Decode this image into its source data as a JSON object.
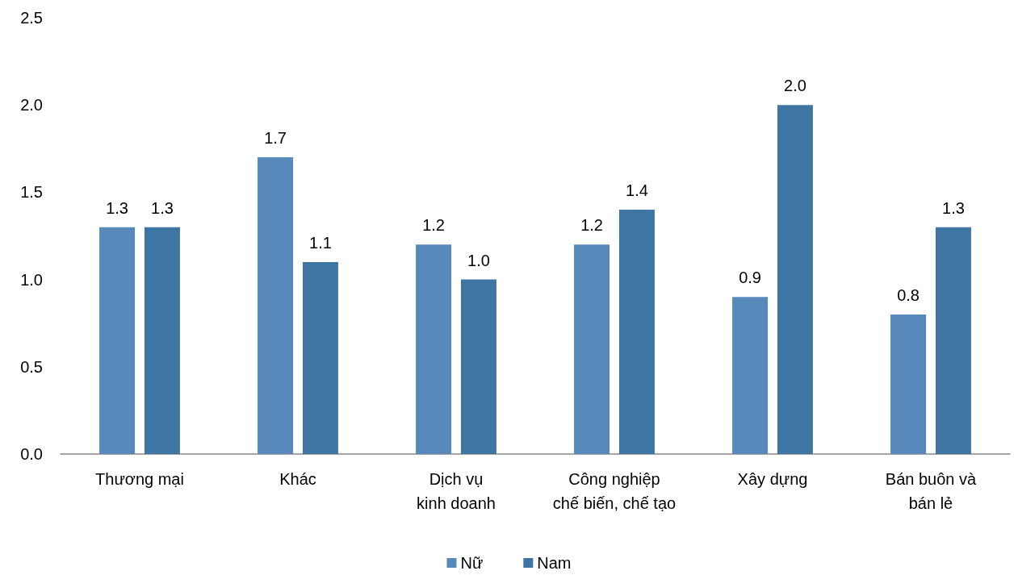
{
  "chart_data": {
    "type": "bar",
    "categories": [
      "Thương mại",
      "Khác",
      "Dịch vụ\nkinh doanh",
      "Công nghiệp\nchế biến, chế tạo",
      "Xây dựng",
      "Bán buôn và\nbán lẻ"
    ],
    "series": [
      {
        "name": "Nữ",
        "color": "#5889bb",
        "values": [
          1.3,
          1.7,
          1.2,
          1.2,
          0.9,
          0.8
        ],
        "value_labels": [
          "1.3",
          "1.7",
          "1.2",
          "1.2",
          "0.9",
          "0.8"
        ]
      },
      {
        "name": "Nam",
        "color": "#3f75a3",
        "values": [
          1.3,
          1.1,
          1.0,
          1.4,
          2.0,
          1.3
        ],
        "value_labels": [
          "1.3",
          "1.1",
          "1.0",
          "1.4",
          "2.0",
          "1.3"
        ]
      }
    ],
    "ylim": [
      0,
      2.5
    ],
    "yticks": [
      {
        "value": 0,
        "label": "0.0"
      },
      {
        "value": 0.5,
        "label": "0.5"
      },
      {
        "value": 1,
        "label": "1.0"
      },
      {
        "value": 1.5,
        "label": "1.5"
      },
      {
        "value": 2,
        "label": "2.0"
      },
      {
        "value": 2.5,
        "label": "2.5"
      }
    ],
    "grid": false,
    "legend": "bottom"
  }
}
